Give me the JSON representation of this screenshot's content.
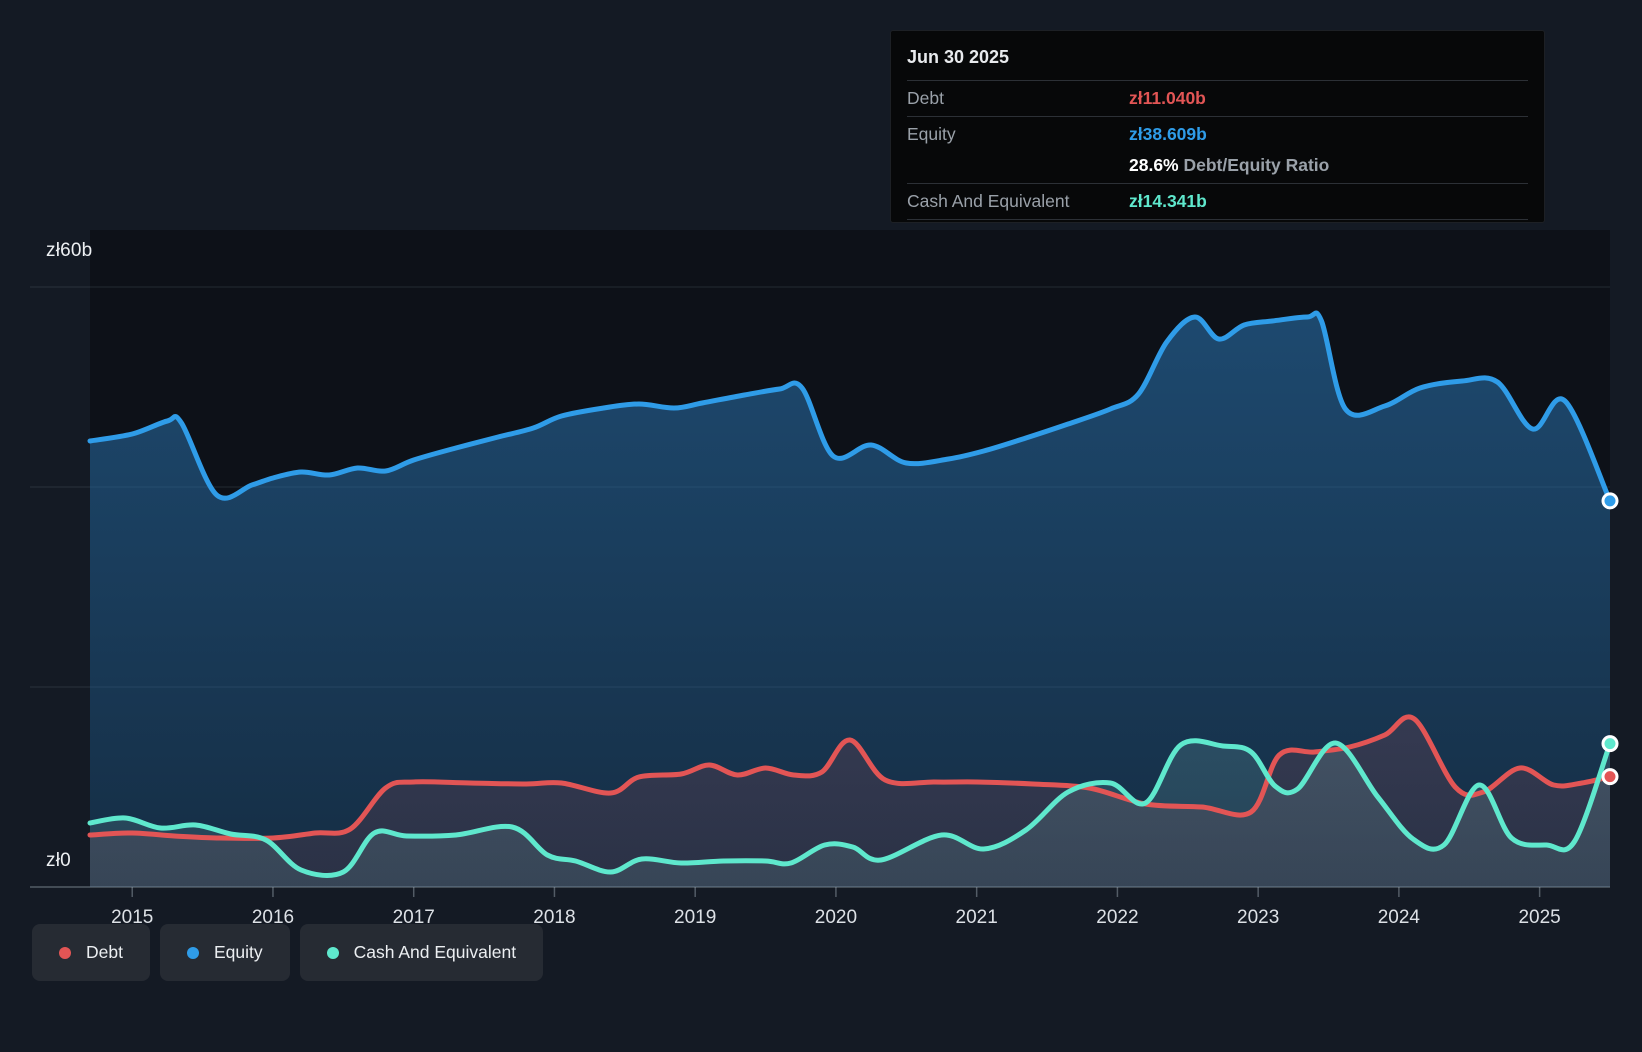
{
  "tooltip": {
    "date": "Jun 30 2025",
    "debt_label": "Debt",
    "debt_value": "zł11.040b",
    "equity_label": "Equity",
    "equity_value": "zł38.609b",
    "ratio_value": "28.6%",
    "ratio_label": "Debt/Equity Ratio",
    "cash_label": "Cash And Equivalent",
    "cash_value": "zł14.341b"
  },
  "axis": {
    "y_max_label": "zł60b",
    "y_zero_label": "zł0",
    "years": [
      2015,
      2016,
      2017,
      2018,
      2019,
      2020,
      2021,
      2022,
      2023,
      2024,
      2025
    ]
  },
  "legend": {
    "debt": "Debt",
    "equity": "Equity",
    "cash": "Cash And Equivalent"
  },
  "colors": {
    "debt": "#e25555",
    "equity": "#2f9ce8",
    "cash": "#5fe8cd",
    "background": "#141a24",
    "plot_background": "#0d1118",
    "tooltip_background": "#070809",
    "gridline": "rgba(160,172,184,0.16)",
    "axis_line": "rgba(160,172,184,0.45)"
  },
  "chart_data": {
    "type": "area",
    "title": "Debt to Equity History",
    "x_domain": [
      2014.7,
      2025.5
    ],
    "y_max": 60,
    "y_unit": "zł billions",
    "gridlines": [
      0,
      20,
      40,
      60
    ],
    "legend_position": "bottom-left",
    "series": [
      {
        "name": "Debt",
        "color": "#e25555",
        "fill_top": "rgba(226,85,85,0.26)",
        "fill_bottom": "rgba(226,85,85,0.10)",
        "points": [
          [
            2014.7,
            5.2
          ],
          [
            2015.0,
            5.4
          ],
          [
            2015.3,
            5.1
          ],
          [
            2015.6,
            4.9
          ],
          [
            2016.0,
            4.9
          ],
          [
            2016.3,
            5.4
          ],
          [
            2016.55,
            5.8
          ],
          [
            2016.8,
            9.9
          ],
          [
            2017.0,
            10.5
          ],
          [
            2017.4,
            10.4
          ],
          [
            2017.8,
            10.3
          ],
          [
            2018.05,
            10.4
          ],
          [
            2018.4,
            9.4
          ],
          [
            2018.6,
            11.0
          ],
          [
            2018.9,
            11.3
          ],
          [
            2019.1,
            12.2
          ],
          [
            2019.3,
            11.2
          ],
          [
            2019.5,
            11.9
          ],
          [
            2019.7,
            11.2
          ],
          [
            2019.9,
            11.5
          ],
          [
            2020.1,
            14.7
          ],
          [
            2020.35,
            10.7
          ],
          [
            2020.7,
            10.5
          ],
          [
            2021.0,
            10.5
          ],
          [
            2021.4,
            10.3
          ],
          [
            2021.8,
            9.9
          ],
          [
            2022.2,
            8.3
          ],
          [
            2022.6,
            8.0
          ],
          [
            2022.95,
            7.5
          ],
          [
            2023.15,
            13.2
          ],
          [
            2023.4,
            13.5
          ],
          [
            2023.65,
            14.0
          ],
          [
            2023.9,
            15.2
          ],
          [
            2024.11,
            16.8
          ],
          [
            2024.4,
            10.0
          ],
          [
            2024.6,
            9.5
          ],
          [
            2024.86,
            11.9
          ],
          [
            2025.1,
            10.2
          ],
          [
            2025.3,
            10.4
          ],
          [
            2025.5,
            11.04
          ]
        ]
      },
      {
        "name": "Equity",
        "color": "#2f9ce8",
        "fill_top": "rgba(40,110,168,0.62)",
        "fill_bottom": "rgba(40,110,168,0.30)",
        "points": [
          [
            2014.7,
            44.6
          ],
          [
            2015.0,
            45.3
          ],
          [
            2015.25,
            46.6
          ],
          [
            2015.35,
            46.4
          ],
          [
            2015.6,
            39.2
          ],
          [
            2015.85,
            40.2
          ],
          [
            2016.0,
            40.9
          ],
          [
            2016.2,
            41.5
          ],
          [
            2016.4,
            41.2
          ],
          [
            2016.6,
            41.9
          ],
          [
            2016.8,
            41.6
          ],
          [
            2017.0,
            42.7
          ],
          [
            2017.3,
            43.9
          ],
          [
            2017.6,
            45.0
          ],
          [
            2017.85,
            45.9
          ],
          [
            2018.05,
            47.1
          ],
          [
            2018.35,
            47.9
          ],
          [
            2018.6,
            48.3
          ],
          [
            2018.85,
            47.9
          ],
          [
            2019.05,
            48.4
          ],
          [
            2019.35,
            49.2
          ],
          [
            2019.6,
            49.8
          ],
          [
            2019.76,
            49.9
          ],
          [
            2019.98,
            43.1
          ],
          [
            2020.25,
            44.2
          ],
          [
            2020.5,
            42.4
          ],
          [
            2020.8,
            42.8
          ],
          [
            2021.05,
            43.6
          ],
          [
            2021.35,
            44.9
          ],
          [
            2021.65,
            46.3
          ],
          [
            2021.95,
            47.8
          ],
          [
            2022.15,
            49.3
          ],
          [
            2022.35,
            54.5
          ],
          [
            2022.55,
            57.0
          ],
          [
            2022.72,
            54.8
          ],
          [
            2022.9,
            56.2
          ],
          [
            2023.1,
            56.6
          ],
          [
            2023.35,
            57.0
          ],
          [
            2023.45,
            56.6
          ],
          [
            2023.62,
            47.8
          ],
          [
            2023.9,
            48.1
          ],
          [
            2024.15,
            49.9
          ],
          [
            2024.45,
            50.6
          ],
          [
            2024.7,
            50.5
          ],
          [
            2024.95,
            45.8
          ],
          [
            2025.18,
            48.6
          ],
          [
            2025.5,
            38.609
          ]
        ]
      },
      {
        "name": "Cash And Equivalent",
        "color": "#5fe8cd",
        "fill_top": "rgba(130,190,188,0.30)",
        "fill_bottom": "rgba(130,190,188,0.14)",
        "points": [
          [
            2014.7,
            6.4
          ],
          [
            2014.95,
            6.9
          ],
          [
            2015.2,
            5.9
          ],
          [
            2015.45,
            6.2
          ],
          [
            2015.7,
            5.3
          ],
          [
            2015.95,
            4.7
          ],
          [
            2016.2,
            1.7
          ],
          [
            2016.5,
            1.5
          ],
          [
            2016.72,
            5.4
          ],
          [
            2016.95,
            5.1
          ],
          [
            2017.3,
            5.2
          ],
          [
            2017.7,
            6.0
          ],
          [
            2017.95,
            3.2
          ],
          [
            2018.15,
            2.6
          ],
          [
            2018.4,
            1.5
          ],
          [
            2018.62,
            2.8
          ],
          [
            2018.9,
            2.4
          ],
          [
            2019.2,
            2.6
          ],
          [
            2019.5,
            2.6
          ],
          [
            2019.68,
            2.4
          ],
          [
            2019.92,
            4.2
          ],
          [
            2020.12,
            4.0
          ],
          [
            2020.32,
            2.7
          ],
          [
            2020.75,
            5.2
          ],
          [
            2021.05,
            3.8
          ],
          [
            2021.35,
            5.7
          ],
          [
            2021.65,
            9.5
          ],
          [
            2021.95,
            10.4
          ],
          [
            2022.2,
            8.4
          ],
          [
            2022.45,
            14.2
          ],
          [
            2022.75,
            14.1
          ],
          [
            2022.95,
            13.5
          ],
          [
            2023.12,
            10.1
          ],
          [
            2023.28,
            9.8
          ],
          [
            2023.55,
            14.4
          ],
          [
            2023.85,
            9.0
          ],
          [
            2024.1,
            4.8
          ],
          [
            2024.32,
            4.2
          ],
          [
            2024.57,
            10.2
          ],
          [
            2024.8,
            4.9
          ],
          [
            2025.05,
            4.2
          ],
          [
            2025.25,
            4.6
          ],
          [
            2025.5,
            14.341
          ]
        ]
      }
    ]
  }
}
